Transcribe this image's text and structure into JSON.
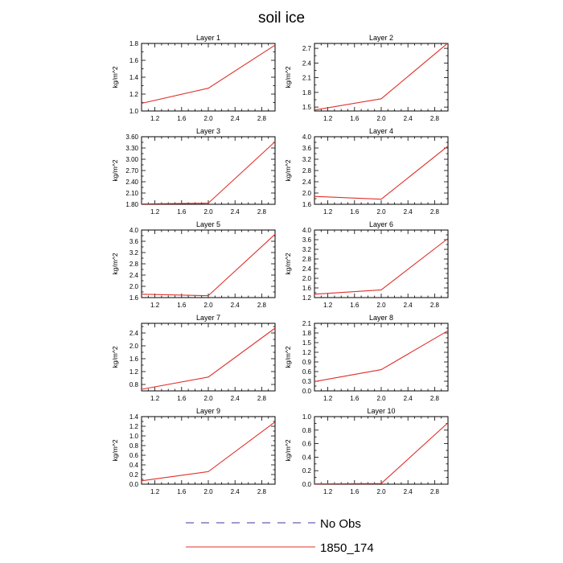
{
  "figure_title": "soil ice",
  "legend": [
    {
      "label": "No Obs",
      "color": "#3a3aa0",
      "dash": true
    },
    {
      "label": "1850_174",
      "color": "#e0302a",
      "dash": false
    }
  ],
  "chart_data": [
    {
      "type": "line",
      "title": "Layer 1",
      "ylabel": "kg/m^2",
      "xlabel": "",
      "xlim": [
        1.0,
        3.0
      ],
      "xticks": [
        "1.2",
        "1.6",
        "2.0",
        "2.4",
        "2.8"
      ],
      "ylim": [
        1.0,
        1.8
      ],
      "yticks": [
        "1.0",
        "1.2",
        "1.4",
        "1.6",
        "1.8"
      ],
      "series": [
        {
          "x": [
            1,
            2,
            3
          ],
          "values": [
            1.09,
            1.27,
            1.78
          ]
        }
      ]
    },
    {
      "type": "line",
      "title": "Layer 2",
      "ylabel": "kg/m^2",
      "xlabel": "",
      "xlim": [
        1.0,
        3.0
      ],
      "xticks": [
        "1.2",
        "1.6",
        "2.0",
        "2.4",
        "2.8"
      ],
      "ylim": [
        1.42,
        2.8
      ],
      "yticks": [
        "1.5",
        "1.8",
        "2.1",
        "2.4",
        "2.7"
      ],
      "series": [
        {
          "x": [
            1,
            2,
            3
          ],
          "values": [
            1.44,
            1.67,
            2.81
          ]
        }
      ]
    },
    {
      "type": "line",
      "title": "Layer 3",
      "ylabel": "kg/m^2",
      "xlabel": "",
      "xlim": [
        1.0,
        3.0
      ],
      "xticks": [
        "1.2",
        "1.6",
        "2.0",
        "2.4",
        "2.8"
      ],
      "ylim": [
        1.8,
        3.6
      ],
      "yticks": [
        "1.80",
        "2.10",
        "2.40",
        "2.70",
        "3.00",
        "3.30",
        "3.60"
      ],
      "series": [
        {
          "x": [
            1,
            2,
            3
          ],
          "values": [
            1.81,
            1.83,
            3.47
          ]
        }
      ]
    },
    {
      "type": "line",
      "title": "Layer 4",
      "ylabel": "kg/m^2",
      "xlabel": "",
      "xlim": [
        1.0,
        3.0
      ],
      "xticks": [
        "1.2",
        "1.6",
        "2.0",
        "2.4",
        "2.8"
      ],
      "ylim": [
        1.6,
        4.0
      ],
      "yticks": [
        "1.6",
        "2.0",
        "2.4",
        "2.8",
        "3.2",
        "3.6",
        "4.0"
      ],
      "series": [
        {
          "x": [
            1,
            2,
            3
          ],
          "values": [
            1.88,
            1.78,
            3.67
          ]
        }
      ]
    },
    {
      "type": "line",
      "title": "Layer 5",
      "ylabel": "kg/m^2",
      "xlabel": "",
      "xlim": [
        1.0,
        3.0
      ],
      "xticks": [
        "1.2",
        "1.6",
        "2.0",
        "2.4",
        "2.8"
      ],
      "ylim": [
        1.6,
        4.0
      ],
      "yticks": [
        "1.6",
        "2.0",
        "2.4",
        "2.8",
        "3.2",
        "3.6",
        "4.0"
      ],
      "series": [
        {
          "x": [
            1,
            2,
            3
          ],
          "values": [
            1.72,
            1.67,
            3.85
          ]
        }
      ]
    },
    {
      "type": "line",
      "title": "Layer 6",
      "ylabel": "kg/m^2",
      "xlabel": "",
      "xlim": [
        1.0,
        3.0
      ],
      "xticks": [
        "1.2",
        "1.6",
        "2.0",
        "2.4",
        "2.8"
      ],
      "ylim": [
        1.2,
        4.0
      ],
      "yticks": [
        "1.2",
        "1.6",
        "2.0",
        "2.4",
        "2.8",
        "3.2",
        "3.6",
        "4.0"
      ],
      "series": [
        {
          "x": [
            1,
            2,
            3
          ],
          "values": [
            1.34,
            1.52,
            3.65
          ]
        }
      ]
    },
    {
      "type": "line",
      "title": "Layer 7",
      "ylabel": "kg/m^2",
      "xlabel": "",
      "xlim": [
        1.0,
        3.0
      ],
      "xticks": [
        "1.2",
        "1.6",
        "2.0",
        "2.4",
        "2.8"
      ],
      "ylim": [
        0.6,
        2.7
      ],
      "yticks": [
        "0.8",
        "1.2",
        "1.6",
        "2.0",
        "2.4"
      ],
      "series": [
        {
          "x": [
            1,
            2,
            3
          ],
          "values": [
            0.65,
            1.03,
            2.55
          ]
        }
      ]
    },
    {
      "type": "line",
      "title": "Layer 8",
      "ylabel": "kg/m^2",
      "xlabel": "",
      "xlim": [
        1.0,
        3.0
      ],
      "xticks": [
        "1.2",
        "1.6",
        "2.0",
        "2.4",
        "2.8"
      ],
      "ylim": [
        0.0,
        2.1
      ],
      "yticks": [
        "0.0",
        "0.3",
        "0.6",
        "0.9",
        "1.2",
        "1.5",
        "1.8",
        "2.1"
      ],
      "series": [
        {
          "x": [
            1,
            2,
            3
          ],
          "values": [
            0.29,
            0.66,
            1.87
          ]
        }
      ]
    },
    {
      "type": "line",
      "title": "Layer 9",
      "ylabel": "kg/m^2",
      "xlabel": "",
      "xlim": [
        1.0,
        3.0
      ],
      "xticks": [
        "1.2",
        "1.6",
        "2.0",
        "2.4",
        "2.8"
      ],
      "ylim": [
        0.0,
        1.4
      ],
      "yticks": [
        "0.0",
        "0.2",
        "0.4",
        "0.6",
        "0.8",
        "1.0",
        "1.2",
        "1.4"
      ],
      "series": [
        {
          "x": [
            1,
            2,
            3
          ],
          "values": [
            0.07,
            0.26,
            1.29
          ]
        }
      ]
    },
    {
      "type": "line",
      "title": "Layer 10",
      "ylabel": "kg/m^2",
      "xlabel": "",
      "xlim": [
        1.0,
        3.0
      ],
      "xticks": [
        "1.2",
        "1.6",
        "2.0",
        "2.4",
        "2.8"
      ],
      "ylim": [
        0.0,
        1.0
      ],
      "yticks": [
        "0.0",
        "0.2",
        "0.4",
        "0.6",
        "0.8",
        "1.0"
      ],
      "series": [
        {
          "x": [
            1,
            2,
            3
          ],
          "values": [
            0.005,
            0.01,
            0.91
          ]
        }
      ]
    }
  ]
}
